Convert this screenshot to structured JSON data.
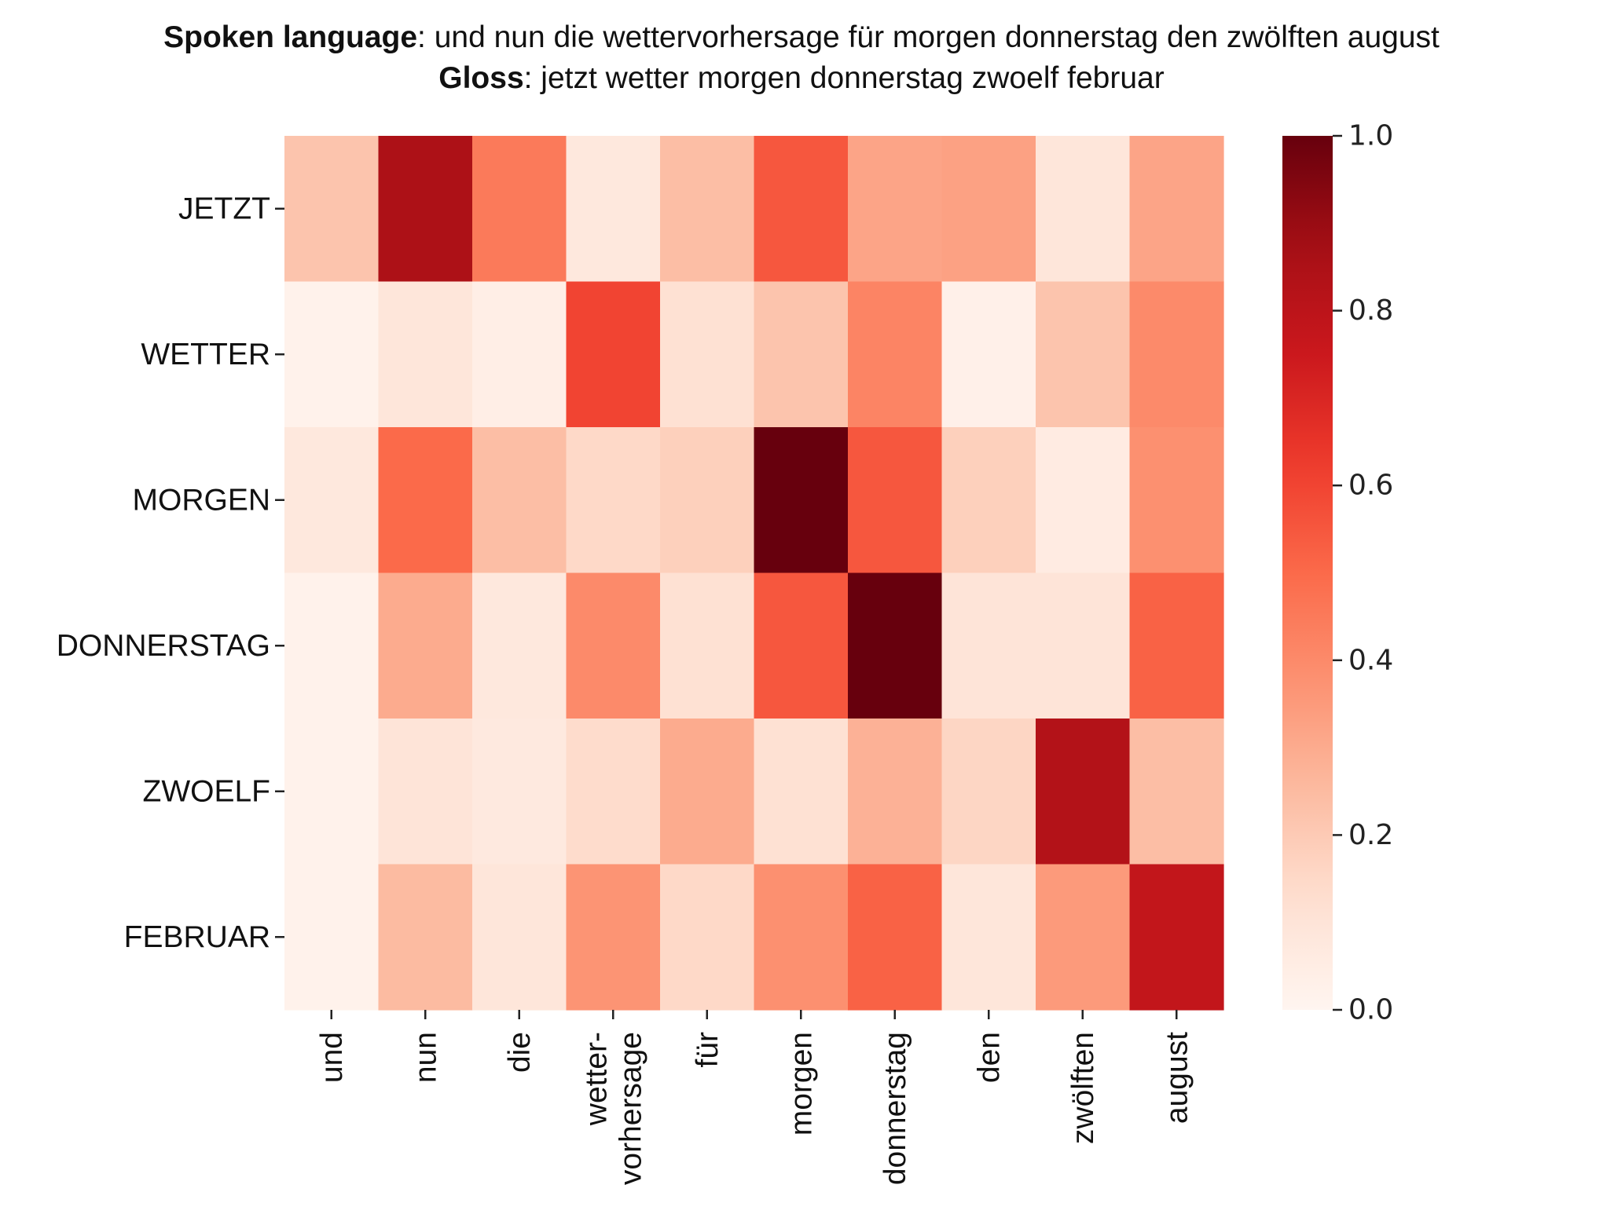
{
  "title": {
    "line1_bold": "Spoken language",
    "line1_rest": ": und nun die wettervorhersage für morgen donnerstag den zwölften august",
    "line2_bold": "Gloss",
    "line2_rest": ": jetzt wetter morgen donnerstag zwoelf februar"
  },
  "chart_data": {
    "type": "heatmap",
    "colormap": "Reds",
    "x_categories": [
      [
        "und"
      ],
      [
        "nun"
      ],
      [
        "die"
      ],
      [
        "wetter-",
        "vorhersage"
      ],
      [
        "für"
      ],
      [
        "morgen"
      ],
      [
        "donnerstag"
      ],
      [
        "den"
      ],
      [
        "zwölften"
      ],
      [
        "august"
      ]
    ],
    "y_categories": [
      "JETZT",
      "WETTER",
      "MORGEN",
      "DONNERSTAG",
      "ZWOELF",
      "FEBRUAR"
    ],
    "values": [
      [
        0.22,
        0.85,
        0.45,
        0.08,
        0.24,
        0.55,
        0.32,
        0.33,
        0.09,
        0.32
      ],
      [
        0.02,
        0.09,
        0.04,
        0.6,
        0.12,
        0.22,
        0.42,
        0.03,
        0.22,
        0.4
      ],
      [
        0.08,
        0.5,
        0.24,
        0.15,
        0.18,
        1.0,
        0.55,
        0.18,
        0.06,
        0.38
      ],
      [
        0.02,
        0.3,
        0.08,
        0.4,
        0.12,
        0.55,
        1.0,
        0.1,
        0.1,
        0.52
      ],
      [
        0.02,
        0.1,
        0.07,
        0.14,
        0.3,
        0.12,
        0.28,
        0.16,
        0.83,
        0.24
      ],
      [
        0.02,
        0.25,
        0.09,
        0.37,
        0.15,
        0.38,
        0.52,
        0.09,
        0.35,
        0.78
      ]
    ],
    "colorbar": {
      "range": [
        0.0,
        1.0
      ],
      "ticks": [
        "0.0",
        "0.2",
        "0.4",
        "0.6",
        "0.8",
        "1.0"
      ]
    },
    "palette": {
      "light": "#fff5f0",
      "dark": "#67000d"
    }
  }
}
